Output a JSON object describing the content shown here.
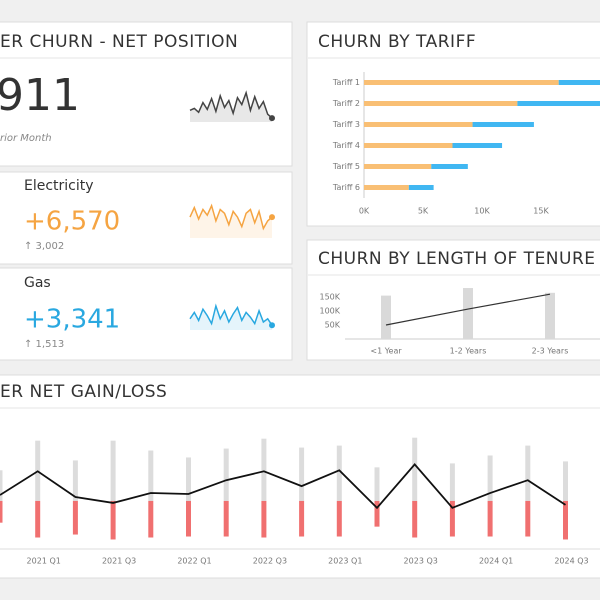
{
  "kpis": {
    "total": {
      "title": "ER CHURN - NET POSITION",
      "value": "911",
      "note": "rior Month"
    },
    "electricity": {
      "label": "Electricity",
      "value": "+6,570",
      "change": "↑ 3,002"
    },
    "gas": {
      "label": "Gas",
      "value": "+3,341",
      "change": "↑ 1,513"
    }
  },
  "chart_data": [
    {
      "type": "sparkline",
      "color": "#444444",
      "ylim": [
        0,
        35
      ],
      "values": [
        12,
        14,
        10,
        20,
        13,
        24,
        11,
        27,
        15,
        22,
        9,
        25,
        18,
        30,
        12,
        26,
        14,
        21,
        8,
        4
      ]
    },
    {
      "type": "sparkline",
      "color": "#f5a442",
      "ylim": [
        0,
        40
      ],
      "values": [
        22,
        32,
        20,
        30,
        24,
        34,
        18,
        30,
        26,
        14,
        28,
        22,
        12,
        26,
        30,
        16,
        28,
        10,
        18,
        22
      ]
    },
    {
      "type": "sparkline",
      "color": "#29a8e0",
      "ylim": [
        0,
        40
      ],
      "values": [
        14,
        22,
        12,
        26,
        18,
        8,
        30,
        14,
        24,
        10,
        20,
        28,
        12,
        22,
        16,
        8,
        24,
        10,
        14,
        6
      ]
    },
    {
      "type": "hbar-stacked",
      "title": "CHURN BY TARIFF",
      "categories": [
        "Tariff 1",
        "Tariff 2",
        "Tariff 3",
        "Tariff 4",
        "Tariff 5",
        "Tariff 6"
      ],
      "series": [
        {
          "color": "#f9bf74",
          "values": [
            16500,
            13000,
            9200,
            7500,
            5700,
            3800
          ]
        },
        {
          "color": "#40b7f2",
          "values": [
            3500,
            7000,
            5200,
            4200,
            3100,
            2100
          ]
        }
      ],
      "xlim": [
        0,
        20000
      ],
      "xticks": [
        {
          "value": 0,
          "label": "0K"
        },
        {
          "value": 5000,
          "label": "5K"
        },
        {
          "value": 10000,
          "label": "10K"
        },
        {
          "value": 15000,
          "label": "15K"
        }
      ]
    },
    {
      "type": "bar-line",
      "title": "CHURN BY LENGTH OF TENURE",
      "categories": [
        "<1 Year",
        "1-2 Years",
        "2-3 Years"
      ],
      "series": [
        {
          "color": "#d9d9d9",
          "values": [
            155000,
            182000,
            165000
          ]
        },
        {
          "color": "#333333",
          "values": [
            50000,
            107000,
            160000
          ]
        }
      ],
      "ylim": [
        0,
        200000
      ],
      "yticks": [
        {
          "value": 50000,
          "label": "50K"
        },
        {
          "value": 100000,
          "label": "100K"
        },
        {
          "value": 150000,
          "label": "150K"
        }
      ]
    },
    {
      "type": "gain-loss",
      "title": "ER NET GAIN/LOSS",
      "categories": [
        null,
        "2021 Q1",
        null,
        "2021 Q3",
        null,
        "2022 Q1",
        null,
        "2022 Q3",
        null,
        "2023 Q1",
        null,
        "2023 Q3",
        null,
        "2024 Q1",
        null,
        "2024 Q3"
      ],
      "series": [
        {
          "color": "#dcdcdc",
          "values": [
            31,
            61,
            41,
            61,
            51,
            44,
            53,
            63,
            54,
            56,
            34,
            64,
            38,
            46,
            56,
            40
          ]
        },
        {
          "color": "#f07070",
          "values": [
            -22,
            -37,
            -34,
            -39,
            -37,
            -36,
            -36,
            -37,
            -36,
            -36,
            -26,
            -37,
            -36,
            -36,
            -36,
            -39
          ]
        },
        {
          "color": "#111111",
          "values": [
            6,
            30,
            4,
            -2,
            8,
            7,
            21,
            30,
            15,
            31,
            -7,
            37,
            -7,
            8,
            21,
            -4
          ]
        }
      ],
      "ylim": [
        -80,
        90
      ]
    }
  ]
}
